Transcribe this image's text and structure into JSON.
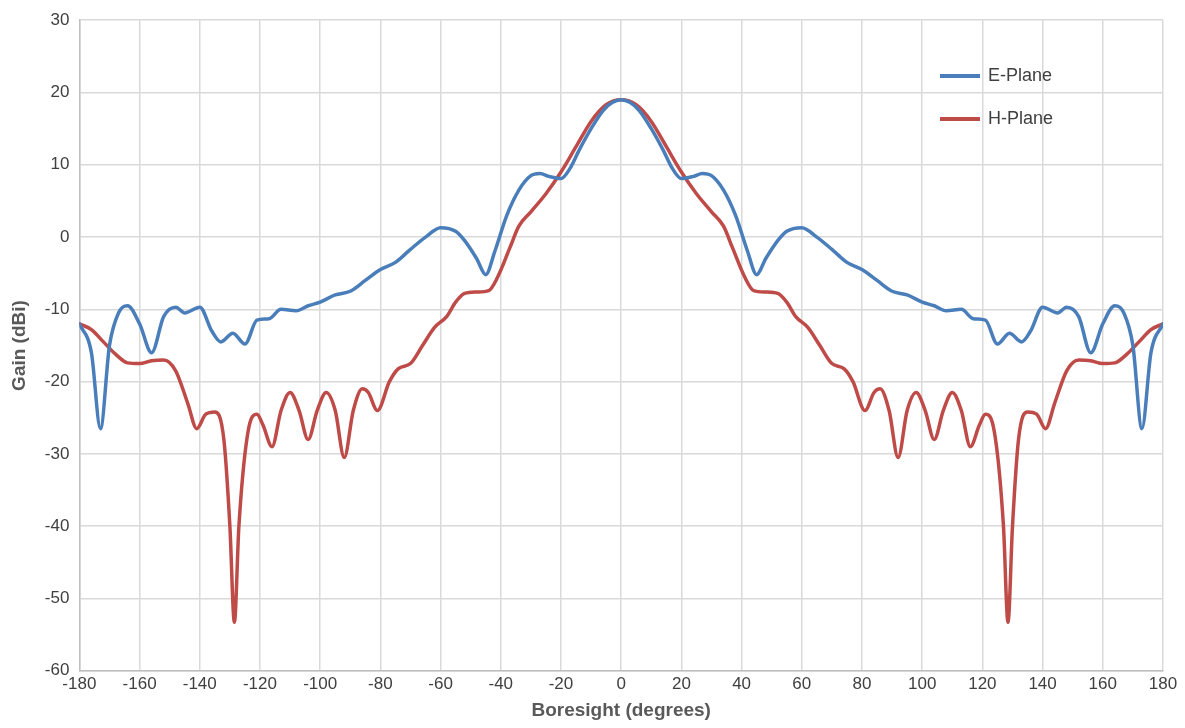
{
  "chart_data": {
    "type": "line",
    "xlabel": "Boresight (degrees)",
    "ylabel": "Gain (dBi)",
    "xlim": [
      -180,
      180
    ],
    "xticks": [
      -180,
      -160,
      -140,
      -120,
      -100,
      -80,
      -60,
      -40,
      -20,
      0,
      20,
      40,
      60,
      80,
      100,
      120,
      140,
      160,
      180
    ],
    "ylim": [
      -60,
      30
    ],
    "yticks": [
      -60,
      -50,
      -40,
      -30,
      -20,
      -10,
      0,
      10,
      20,
      30
    ],
    "grid": true,
    "legend": "top right",
    "marker": "none",
    "line_style": "solid",
    "series": [
      {
        "name": "E-Plane",
        "color": "#4a7ebb",
        "x": [
          -180,
          -176,
          -173,
          -170,
          -167,
          -164,
          -160,
          -156,
          -152,
          -148,
          -145,
          -140,
          -136,
          -133,
          -129,
          -125,
          -121,
          -117,
          -113,
          -108,
          -104,
          -100,
          -95,
          -90,
          -85,
          -80,
          -75,
          -70,
          -65,
          -60,
          -55,
          -52,
          -48,
          -45,
          -42,
          -38,
          -34,
          -30,
          -27,
          -24,
          -20,
          -17,
          -14,
          -10,
          -6,
          -3,
          0,
          3,
          6,
          10,
          14,
          17,
          20,
          24,
          27,
          30,
          34,
          38,
          42,
          45,
          48,
          52,
          55,
          60,
          65,
          70,
          75,
          80,
          85,
          90,
          95,
          100,
          104,
          108,
          113,
          117,
          121,
          125,
          129,
          133,
          136,
          140,
          145,
          148,
          152,
          156,
          160,
          164,
          167,
          170,
          173,
          176,
          180
        ],
        "values": [
          -12,
          -16,
          -26.5,
          -15,
          -10.5,
          -9.5,
          -12,
          -16,
          -11,
          -9.7,
          -10.5,
          -9.7,
          -13,
          -14.5,
          -13.3,
          -14.8,
          -11.5,
          -11.3,
          -10,
          -10.2,
          -9.5,
          -9,
          -8,
          -7.5,
          -6,
          -4.5,
          -3.5,
          -1.7,
          0,
          1.3,
          0.8,
          -0.5,
          -3,
          -5.2,
          -2,
          3,
          6.5,
          8.5,
          8.8,
          8.4,
          8.1,
          9.5,
          12,
          15,
          17.5,
          18.6,
          19,
          18.6,
          17.5,
          15,
          12,
          9.5,
          8.1,
          8.4,
          8.8,
          8.5,
          6.5,
          3,
          -2,
          -5.2,
          -3,
          -0.5,
          0.8,
          1.3,
          0,
          -1.7,
          -3.5,
          -4.5,
          -6,
          -7.5,
          -8,
          -9,
          -9.5,
          -10.2,
          -10,
          -11.3,
          -11.5,
          -14.8,
          -13.3,
          -14.5,
          -13,
          -9.7,
          -10.5,
          -9.7,
          -11,
          -16,
          -12,
          -9.5,
          -10.5,
          -15,
          -26.5,
          -16,
          -12
        ]
      },
      {
        "name": "H-Plane",
        "color": "#be4b48",
        "x": [
          -180,
          -176,
          -172,
          -168,
          -164,
          -160,
          -156,
          -152,
          -148,
          -144,
          -141,
          -138,
          -135,
          -132,
          -130,
          -128.5,
          -127,
          -124,
          -121,
          -119,
          -116,
          -113,
          -110,
          -107,
          -104,
          -101,
          -98,
          -95,
          -92,
          -89,
          -86,
          -84,
          -81,
          -77,
          -74,
          -70,
          -66,
          -62,
          -58,
          -55,
          -52,
          -48,
          -44,
          -41,
          -37,
          -34,
          -30,
          -25,
          -20,
          -15,
          -10,
          -5,
          0,
          5,
          10,
          15,
          20,
          25,
          30,
          34,
          37,
          41,
          44,
          48,
          52,
          55,
          58,
          62,
          66,
          70,
          74,
          77,
          81,
          84,
          86,
          89,
          92,
          95,
          98,
          101,
          104,
          107,
          110,
          113,
          116,
          119,
          121,
          124,
          127,
          128.5,
          130,
          132,
          135,
          138,
          141,
          144,
          148,
          152,
          156,
          160,
          164,
          168,
          172,
          176,
          180
        ],
        "values": [
          -12,
          -12.8,
          -14.5,
          -16.2,
          -17.4,
          -17.5,
          -17.1,
          -17,
          -18.5,
          -23,
          -26.5,
          -24.5,
          -24.2,
          -28,
          -40,
          -53.3,
          -40,
          -27,
          -24.5,
          -26,
          -29,
          -24,
          -21.5,
          -24,
          -28,
          -24,
          -21.5,
          -24,
          -30.5,
          -24,
          -21,
          -21.5,
          -24,
          -20,
          -18.2,
          -17.5,
          -15,
          -12.5,
          -11,
          -9,
          -7.8,
          -7.6,
          -7.4,
          -5.5,
          -1.5,
          1.5,
          3.5,
          6,
          9,
          12.5,
          16,
          18.3,
          19,
          18.3,
          16,
          12.5,
          9,
          6,
          3.5,
          1.5,
          -1.5,
          -5.5,
          -7.4,
          -7.6,
          -7.8,
          -9,
          -11,
          -12.5,
          -15,
          -17.5,
          -18.2,
          -20,
          -24,
          -21.5,
          -21,
          -24,
          -30.5,
          -24,
          -21.5,
          -24,
          -28,
          -24,
          -21.5,
          -24,
          -29,
          -26,
          -24.5,
          -27,
          -40,
          -53.3,
          -40,
          -28,
          -24.2,
          -24.5,
          -26.5,
          -23,
          -18.5,
          -17,
          -17.1,
          -17.5,
          -17.4,
          -16.2,
          -14.5,
          -12.8,
          -12
        ]
      }
    ]
  }
}
